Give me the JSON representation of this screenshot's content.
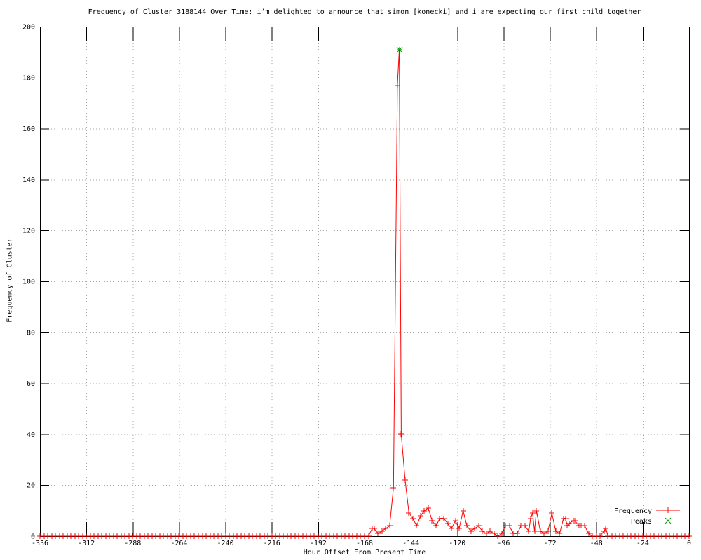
{
  "chart_data": {
    "type": "line",
    "title": "Frequency of Cluster 3188144 Over Time: i’m delighted to announce that simon [konecki] and i are expecting our first child together",
    "xlabel": "Hour Offset From Present Time",
    "ylabel": "Frequency of Cluster",
    "xlim": [
      -336,
      0
    ],
    "ylim": [
      0,
      200
    ],
    "xticks": [
      -336,
      -312,
      -288,
      -264,
      -240,
      -216,
      -192,
      -168,
      -144,
      -120,
      -96,
      -72,
      -48,
      -24,
      0
    ],
    "yticks": [
      0,
      20,
      40,
      60,
      80,
      100,
      120,
      140,
      160,
      180,
      200
    ],
    "grid": true,
    "grid_color": "#a6a6a6",
    "border_color": "#000000",
    "background": "#ffffff",
    "legend_position": "inside bottom right",
    "series": [
      {
        "name": "Frequency",
        "color": "#ff0000",
        "marker": "plus",
        "style": "linespoints",
        "zero_run": {
          "from": -336,
          "to": -172,
          "step": 2,
          "value": 0
        },
        "points": [
          [
            -170,
            0
          ],
          [
            -168,
            0
          ],
          [
            -166,
            0
          ],
          [
            -164,
            3
          ],
          [
            -163,
            3
          ],
          [
            -161,
            1
          ],
          [
            -159,
            2
          ],
          [
            -157,
            3
          ],
          [
            -155,
            4
          ],
          [
            -153,
            19
          ],
          [
            -151,
            177
          ],
          [
            -150,
            191
          ],
          [
            -149,
            40
          ],
          [
            -147,
            22
          ],
          [
            -145,
            9
          ],
          [
            -143,
            7
          ],
          [
            -141,
            4
          ],
          [
            -139,
            8
          ],
          [
            -137,
            10
          ],
          [
            -135,
            11
          ],
          [
            -133,
            6
          ],
          [
            -131,
            4
          ],
          [
            -129,
            7
          ],
          [
            -127,
            7
          ],
          [
            -125,
            5
          ],
          [
            -123,
            3
          ],
          [
            -121,
            6
          ],
          [
            -119,
            3
          ],
          [
            -117,
            10
          ],
          [
            -115,
            4
          ],
          [
            -113,
            2
          ],
          [
            -111,
            3
          ],
          [
            -109,
            4
          ],
          [
            -107,
            2
          ],
          [
            -105,
            1
          ],
          [
            -103,
            2
          ],
          [
            -101,
            1
          ],
          [
            -99,
            0
          ],
          [
            -97,
            1
          ],
          [
            -95,
            4
          ],
          [
            -93,
            4
          ],
          [
            -91,
            1
          ],
          [
            -89,
            1
          ],
          [
            -87,
            4
          ],
          [
            -85,
            4
          ],
          [
            -83,
            2
          ],
          [
            -82,
            7
          ],
          [
            -81,
            9
          ],
          [
            -80,
            2
          ],
          [
            -79,
            10
          ],
          [
            -77,
            2
          ],
          [
            -75,
            1
          ],
          [
            -73,
            2
          ],
          [
            -71,
            9
          ],
          [
            -69,
            2
          ],
          [
            -67,
            1
          ],
          [
            -65,
            7
          ],
          [
            -64,
            7
          ],
          [
            -63,
            4
          ],
          [
            -62,
            5
          ],
          [
            -60,
            6
          ],
          [
            -59,
            6
          ],
          [
            -57,
            4
          ],
          [
            -56,
            4
          ],
          [
            -54,
            4
          ],
          [
            -52,
            1
          ],
          [
            -50,
            0
          ],
          [
            -48,
            0
          ],
          [
            -46,
            0
          ],
          [
            -44,
            2
          ],
          [
            -43,
            3
          ],
          [
            -42,
            0
          ],
          [
            -40,
            0
          ],
          [
            -38,
            0
          ],
          [
            -36,
            0
          ],
          [
            -34,
            0
          ],
          [
            -32,
            0
          ],
          [
            -30,
            0
          ],
          [
            -28,
            0
          ],
          [
            -26,
            0
          ],
          [
            -24,
            0
          ],
          [
            -22,
            0
          ],
          [
            -20,
            0
          ],
          [
            -18,
            0
          ],
          [
            -16,
            0
          ],
          [
            -14,
            0
          ],
          [
            -12,
            0
          ],
          [
            -10,
            0
          ],
          [
            -8,
            0
          ],
          [
            -6,
            0
          ],
          [
            -4,
            0
          ],
          [
            -2,
            0
          ],
          [
            0,
            0
          ]
        ]
      },
      {
        "name": "Peaks",
        "color": "#00a000",
        "marker": "cross",
        "style": "points",
        "points": [
          [
            -150,
            191
          ]
        ]
      }
    ]
  }
}
